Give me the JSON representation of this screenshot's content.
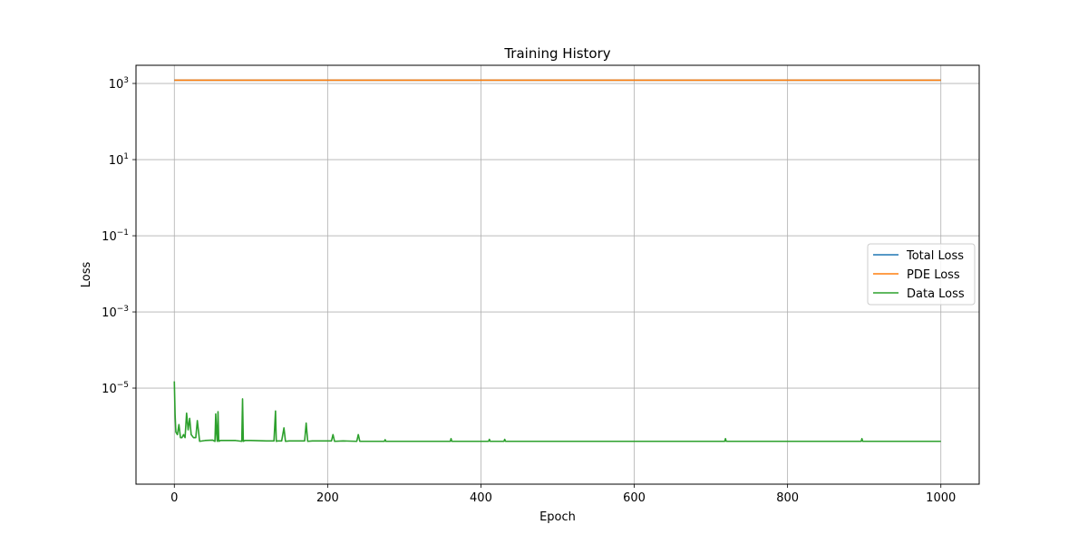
{
  "chart_data": {
    "type": "line",
    "title": "Training History",
    "xlabel": "Epoch",
    "ylabel": "Loss",
    "xlim": [
      -50,
      1050
    ],
    "ylim": [
      3e-08,
      3000
    ],
    "yscale": "log",
    "grid": true,
    "legend_position": "center-right",
    "x_ticks": [
      0,
      200,
      400,
      600,
      800,
      1000
    ],
    "x_tick_labels": [
      "0",
      "200",
      "400",
      "600",
      "800",
      "1000"
    ],
    "y_ticks": [
      1e-05,
      0.001,
      0.1,
      10,
      1000
    ],
    "y_tick_labels": [
      {
        "base": "10",
        "exp": "−5"
      },
      {
        "base": "10",
        "exp": "−3"
      },
      {
        "base": "10",
        "exp": "−1"
      },
      {
        "base": "10",
        "exp": "1"
      },
      {
        "base": "10",
        "exp": "3"
      }
    ],
    "series": [
      {
        "name": "Total Loss",
        "color": "#1f77b4",
        "x": [
          0,
          1000
        ],
        "y": [
          1220,
          1220
        ]
      },
      {
        "name": "PDE Loss",
        "color": "#ff7f0e",
        "x": [
          0,
          1000
        ],
        "y": [
          1220,
          1220
        ]
      },
      {
        "name": "Data Loss",
        "color": "#2ca02c",
        "x": [
          0,
          1,
          2,
          4,
          6,
          8,
          10,
          12,
          14,
          16,
          18,
          20,
          22,
          25,
          28,
          30,
          33,
          40,
          50,
          53,
          54,
          55,
          56,
          57,
          58,
          60,
          70,
          80,
          88,
          89,
          90,
          92,
          95,
          100,
          120,
          130,
          132,
          133,
          135,
          140,
          143,
          145,
          150,
          170,
          172,
          174,
          180,
          205,
          207,
          209,
          220,
          238,
          240,
          242,
          260,
          274,
          275,
          276,
          300,
          360,
          361,
          362,
          400,
          410,
          411,
          412,
          430,
          431,
          432,
          500,
          600,
          700,
          718,
          719,
          720,
          722,
          800,
          896,
          897,
          898,
          950,
          1000
        ],
        "y": [
          1.5e-05,
          2e-06,
          7e-07,
          6e-07,
          1.1e-06,
          5e-07,
          5e-07,
          6e-07,
          5e-07,
          2.2e-06,
          8e-07,
          1.6e-06,
          6e-07,
          5e-07,
          5e-07,
          1.4e-06,
          4e-07,
          4.2e-07,
          4.3e-07,
          4e-07,
          2.1e-06,
          7e-07,
          4e-07,
          2.4e-06,
          4e-07,
          4.2e-07,
          4.2e-07,
          4.2e-07,
          4e-07,
          5.2e-06,
          4e-07,
          4.2e-07,
          4.2e-07,
          4.2e-07,
          4.1e-07,
          4.1e-07,
          2.5e-06,
          4e-07,
          4.1e-07,
          4.1e-07,
          9e-07,
          4e-07,
          4.1e-07,
          4.1e-07,
          1.2e-06,
          4e-07,
          4.1e-07,
          4.1e-07,
          6e-07,
          4e-07,
          4.1e-07,
          4e-07,
          6e-07,
          4e-07,
          4e-07,
          4e-07,
          4.4e-07,
          4e-07,
          4e-07,
          4e-07,
          4.7e-07,
          4e-07,
          4e-07,
          4e-07,
          4.5e-07,
          4e-07,
          4e-07,
          4.5e-07,
          4e-07,
          4e-07,
          4e-07,
          4e-07,
          4e-07,
          4.7e-07,
          4e-07,
          4e-07,
          4e-07,
          4e-07,
          4.7e-07,
          4e-07,
          4e-07,
          4e-07
        ]
      }
    ]
  }
}
